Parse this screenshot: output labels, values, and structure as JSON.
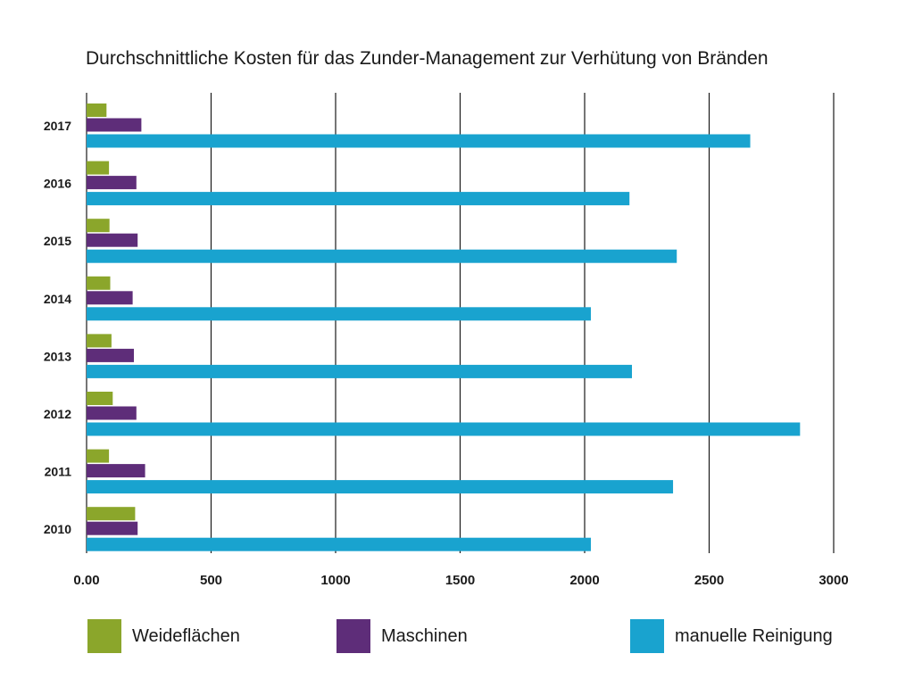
{
  "chart_data": {
    "type": "bar",
    "orientation": "horizontal",
    "title": "Durchschnittliche Kosten für das Zunder-Management zur Verhütung von Bränden",
    "xlabel": "",
    "ylabel": "",
    "categories": [
      "2017",
      "2016",
      "2015",
      "2014",
      "2013",
      "2012",
      "2011",
      "2010"
    ],
    "series": [
      {
        "name": "Weideflächen",
        "color": "#8ba62b",
        "values": [
          80,
          90,
          92,
          95,
          100,
          105,
          90,
          195
        ]
      },
      {
        "name": "Maschinen",
        "color": "#5e2d79",
        "values": [
          220,
          200,
          205,
          185,
          190,
          200,
          235,
          205
        ]
      },
      {
        "name": "manuelle Reinigung",
        "color": "#19a3cf",
        "values": [
          2665,
          2180,
          2370,
          2025,
          2190,
          2865,
          2355,
          2025
        ]
      }
    ],
    "xlim": [
      0,
      3000
    ],
    "xticks": [
      0,
      500,
      1000,
      1500,
      2000,
      2500,
      3000
    ],
    "xtick_labels": [
      "0.00",
      "500",
      "1000",
      "1500",
      "2000",
      "2500",
      "3000"
    ],
    "grid": "vertical",
    "legend": "bottom"
  }
}
